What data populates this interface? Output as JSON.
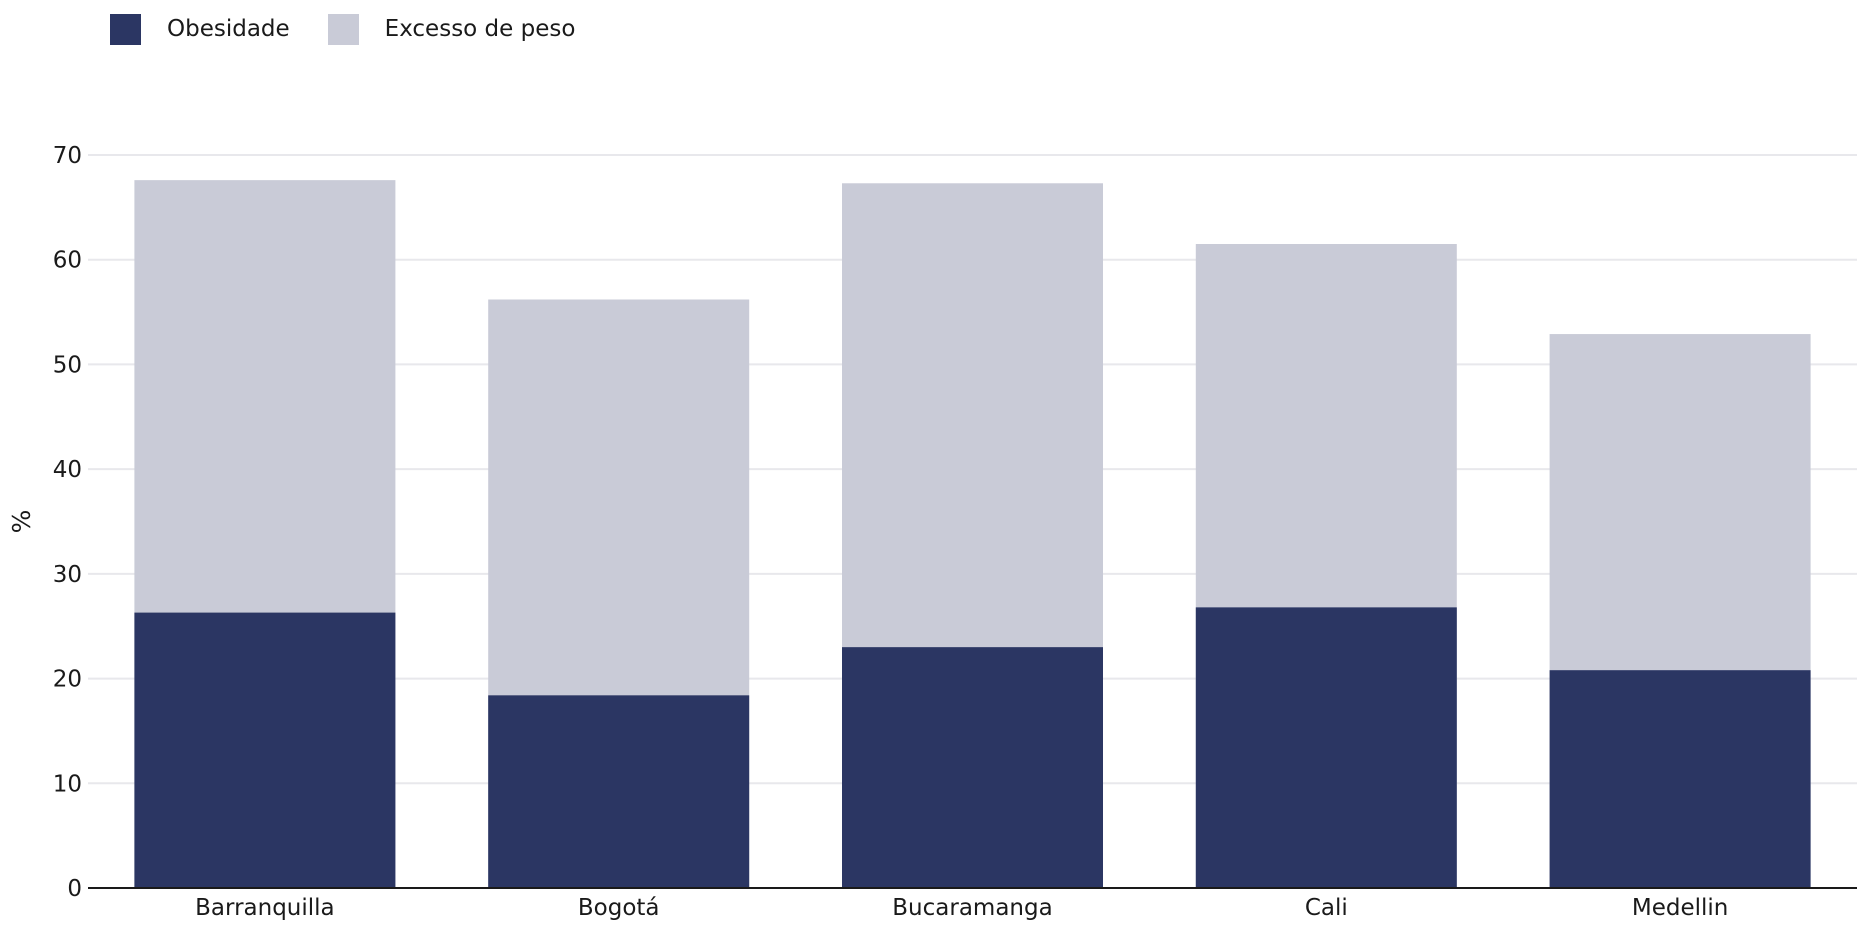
{
  "chart_data": {
    "type": "bar",
    "stacked": false,
    "overlapping_bars": true,
    "categories": [
      "Barranquilla",
      "Bogotá",
      "Bucaramanga",
      "Cali",
      "Medellin"
    ],
    "series": [
      {
        "name": "Obesidade",
        "color": "#2b3663",
        "values": [
          26.3,
          18.4,
          23.0,
          26.8,
          20.8
        ]
      },
      {
        "name": "Excesso de peso",
        "color": "#c9cbd7",
        "values": [
          67.6,
          56.2,
          67.3,
          61.5,
          52.9
        ]
      }
    ],
    "title": "",
    "xlabel": "",
    "ylabel": "%",
    "ylim": [
      0,
      70
    ],
    "yticks": [
      0,
      10,
      20,
      30,
      40,
      50,
      60,
      70
    ],
    "grid": true,
    "legend_position": "top-left"
  },
  "colors": {
    "grid": "#e8e8ec",
    "axis": "#1a1a1a"
  }
}
